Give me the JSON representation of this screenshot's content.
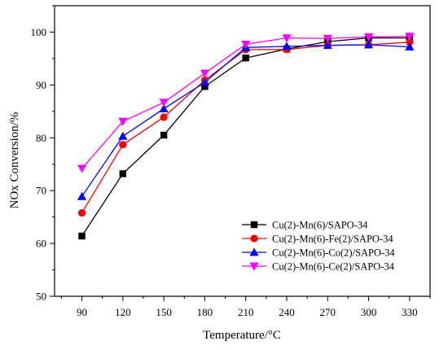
{
  "chart_data": {
    "type": "line",
    "title": "",
    "xlabel": "Temperature/°C",
    "ylabel": "NOx Conversion/%",
    "x": [
      90,
      120,
      150,
      180,
      210,
      240,
      270,
      300,
      330
    ],
    "xlim": [
      70,
      345
    ],
    "ylim": [
      50,
      105
    ],
    "x_ticks": [
      90,
      120,
      150,
      180,
      210,
      240,
      270,
      300,
      330
    ],
    "y_ticks": [
      50,
      60,
      70,
      80,
      90,
      100
    ],
    "grid": false,
    "legend_position": "bottom-right",
    "series": [
      {
        "name": "Cu(2)-Mn(6)/SAPO-34",
        "color": "#000000",
        "marker": "square",
        "values": [
          61.4,
          73.2,
          80.5,
          89.7,
          95.1,
          96.8,
          98.2,
          98.9,
          98.9
        ]
      },
      {
        "name": "Cu(2)-Mn(6)-Fe(2)/SAPO-34",
        "color": "#ff0000",
        "marker": "circle",
        "values": [
          65.8,
          78.7,
          83.9,
          90.9,
          96.7,
          96.7,
          97.5,
          97.6,
          98.1
        ]
      },
      {
        "name": "Cu(2)-Mn(6)-Co(2)/SAPO-34",
        "color": "#0000ff",
        "marker": "triangle-up",
        "values": [
          68.9,
          80.3,
          85.5,
          90.5,
          97.1,
          97.3,
          97.5,
          97.6,
          97.2
        ]
      },
      {
        "name": "Cu(2)-Mn(6)-Ce(2)/SAPO-34",
        "color": "#ff00ff",
        "marker": "triangle-down",
        "values": [
          74.2,
          83.1,
          86.7,
          92.2,
          97.7,
          98.9,
          98.8,
          99.1,
          99.2
        ]
      }
    ]
  }
}
